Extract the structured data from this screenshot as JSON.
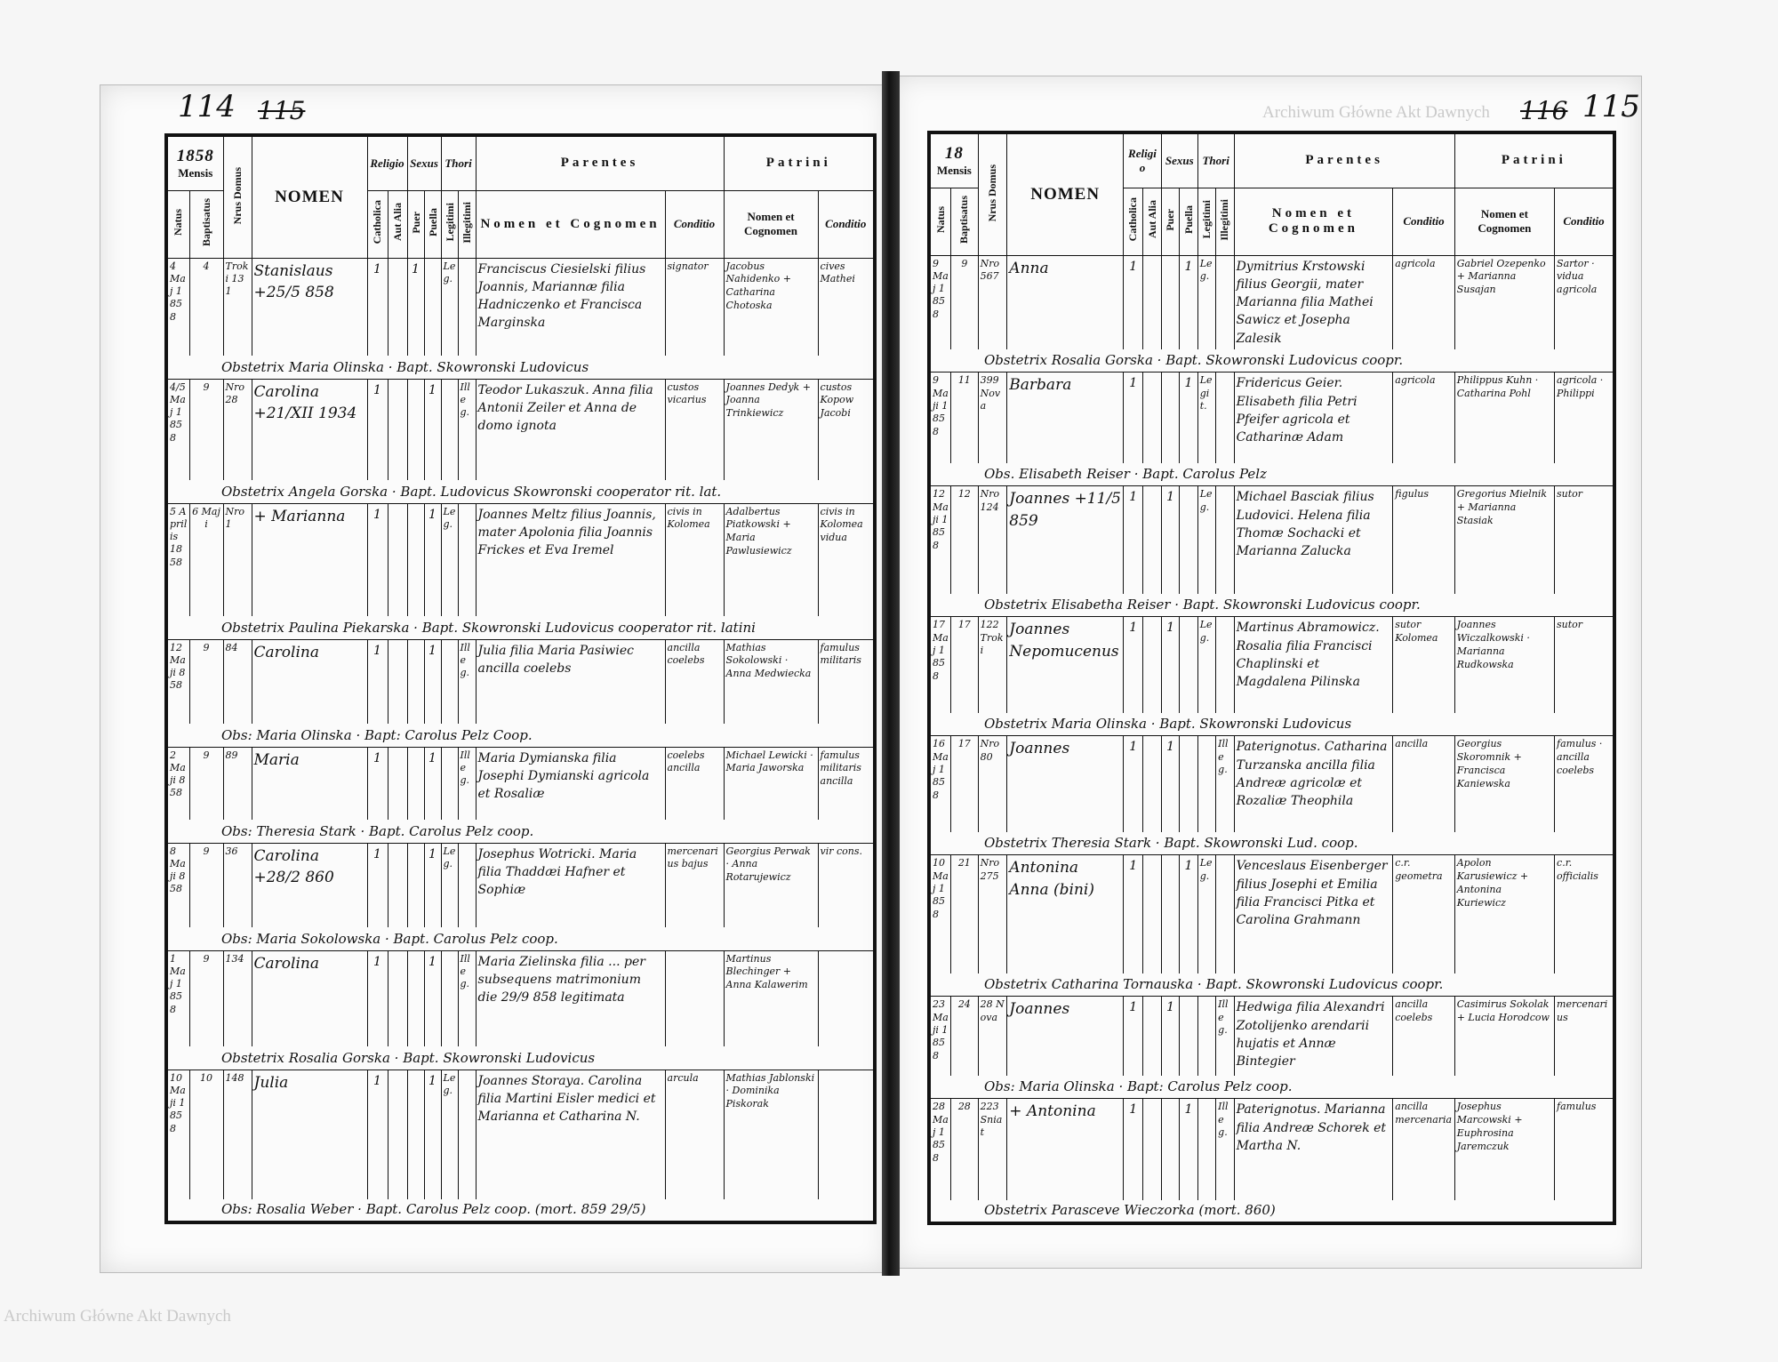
{
  "folios": {
    "left": "114",
    "left_struck": "115",
    "right_struck": "116",
    "right": "115"
  },
  "watermark": "Archiwum Główne Akt Dawnych",
  "headers": {
    "year_left": "1858",
    "year_right": "18",
    "mensis": "Mensis",
    "natus": "Natus",
    "baptisatus": "Baptisatus",
    "domus": "Nrus Domus",
    "nomen": "NOMEN",
    "religio": "Religio",
    "catholica": "Catholica",
    "aut_alia": "Aut Alia",
    "sexus": "Sexus",
    "puer": "Puer",
    "puella": "Puella",
    "legitimi": "Legitimi",
    "illegitimi": "Illegitimi",
    "thori": "Thori",
    "parentes": "Parentes",
    "patrini": "Patrini",
    "nomen_cognomen": "Nomen et Cognomen",
    "conditio": "Conditio"
  },
  "left_page": {
    "rows": [
      {
        "natus": "4 Maj 1858",
        "bapt": "4",
        "domus": "Troki 131",
        "nomen": "Stanislaus +25/5 858",
        "cath": "1",
        "alia": "",
        "puer": "1",
        "puella": "",
        "leg": "Leg.",
        "illeg": "",
        "parentes": "Franciscus Ciesielski filius Joannis, Mariannæ filia Hadniczenko et Francisca Marginska",
        "cond": "signator",
        "patrini": "Jacobus Nahidenko + Catharina Chotoska",
        "pcond": "cives Mathei",
        "note": "Obstetrix Maria Olinska · Bapt. Skowronski Ludovicus"
      },
      {
        "natus": "4/5 Maj 1858",
        "bapt": "9",
        "domus": "Nro 28",
        "nomen": "Carolina +21/XII 1934",
        "cath": "1",
        "alia": "",
        "puer": "",
        "puella": "1",
        "leg": "",
        "illeg": "Illeg.",
        "parentes": "Teodor Lukaszuk. Anna filia Antonii Zeiler et Anna de domo ignota",
        "cond": "custos vicarius",
        "patrini": "Joannes Dedyk + Joanna Trinkiewicz",
        "pcond": "custos Kopow Jacobi",
        "note": "Obstetrix Angela Gorska · Bapt. Ludovicus Skowronski cooperator rit. lat."
      },
      {
        "natus": "5 Aprilis 1858",
        "bapt": "6 Maji",
        "domus": "Nro 1",
        "nomen": "+ Marianna",
        "cath": "1",
        "alia": "",
        "puer": "",
        "puella": "1",
        "leg": "Leg.",
        "illeg": "",
        "parentes": "Joannes Meltz filius Joannis, mater Apolonia filia Joannis Frickes et Eva Iremel",
        "cond": "civis in Kolomea",
        "patrini": "Adalbertus Piatkowski + Maria Pawlusiewicz",
        "pcond": "civis in Kolomea vidua",
        "note": "Obstetrix Paulina Piekarska · Bapt. Skowronski Ludovicus cooperator rit. latini"
      },
      {
        "natus": "12 Maji 858",
        "bapt": "9",
        "domus": "84",
        "nomen": "Carolina",
        "cath": "1",
        "alia": "",
        "puer": "",
        "puella": "1",
        "leg": "",
        "illeg": "Illeg.",
        "parentes": "Julia filia Maria Pasiwiec ancilla coelebs",
        "cond": "ancilla coelebs",
        "patrini": "Mathias Sokolowski · Anna Medwiecka",
        "pcond": "famulus militaris",
        "note": "Obs: Maria Olinska · Bapt: Carolus Pelz Coop."
      },
      {
        "natus": "2 Maji 858",
        "bapt": "9",
        "domus": "89",
        "nomen": "Maria",
        "cath": "1",
        "alia": "",
        "puer": "",
        "puella": "1",
        "leg": "",
        "illeg": "Illeg.",
        "parentes": "Maria Dymianska filia Josephi Dymianski agricola et Rosaliæ",
        "cond": "coelebs ancilla",
        "patrini": "Michael Lewicki · Maria Jaworska",
        "pcond": "famulus militaris ancilla",
        "note": "Obs: Theresia Stark · Bapt. Carolus Pelz coop."
      },
      {
        "natus": "8 Maji 858",
        "bapt": "9",
        "domus": "36",
        "nomen": "Carolina +28/2 860",
        "cath": "1",
        "alia": "",
        "puer": "",
        "puella": "1",
        "leg": "Leg.",
        "illeg": "",
        "parentes": "Josephus Wotricki. Maria filia Thaddæi Hafner et Sophiæ",
        "cond": "mercenarius bajus",
        "patrini": "Georgius Perwak · Anna Rotarujewicz",
        "pcond": "vir cons.",
        "note": "Obs: Maria Sokolowska · Bapt. Carolus Pelz coop."
      },
      {
        "natus": "1 Maj 1858",
        "bapt": "9",
        "domus": "134",
        "nomen": "Carolina",
        "cath": "1",
        "alia": "",
        "puer": "",
        "puella": "1",
        "leg": "",
        "illeg": "Illeg.",
        "parentes": "Maria Zielinska filia ... per subsequens matrimonium die 29/9 858 legitimata",
        "cond": "",
        "patrini": "Martinus Blechinger + Anna Kalawerim",
        "pcond": "",
        "note": "Obstetrix Rosalia Gorska · Bapt. Skowronski Ludovicus"
      },
      {
        "natus": "10 Maji 1858",
        "bapt": "10",
        "domus": "148",
        "nomen": "Julia",
        "cath": "1",
        "alia": "",
        "puer": "",
        "puella": "1",
        "leg": "Leg.",
        "illeg": "",
        "parentes": "Joannes Storaya. Carolina filia Martini Eisler medici et Marianna et Catharina N.",
        "cond": "arcula",
        "patrini": "Mathias Jablonski · Dominika Piskorak",
        "pcond": "",
        "note": "Obs: Rosalia Weber · Bapt. Carolus Pelz coop. (mort. 859 29/5)"
      }
    ]
  },
  "right_page": {
    "rows": [
      {
        "natus": "9 Maj 1858",
        "bapt": "9",
        "domus": "Nro 567",
        "nomen": "Anna",
        "cath": "1",
        "alia": "",
        "puer": "",
        "puella": "1",
        "leg": "Leg.",
        "illeg": "",
        "parentes": "Dymitrius Krstowski filius Georgii, mater Marianna filia Mathei Sawicz et Josepha Zalesik",
        "cond": "agricola",
        "patrini": "Gabriel Ozepenko + Marianna Susajan",
        "pcond": "Sartor · vidua agricola",
        "note": "Obstetrix Rosalia Gorska · Bapt. Skowronski Ludovicus coopr."
      },
      {
        "natus": "9 Maji 1858",
        "bapt": "11",
        "domus": "399 Nova",
        "nomen": "Barbara",
        "cath": "1",
        "alia": "",
        "puer": "",
        "puella": "1",
        "leg": "Legit.",
        "illeg": "",
        "parentes": "Fridericus Geier. Elisabeth filia Petri Pfeifer agricola et Catharinæ Adam",
        "cond": "agricola",
        "patrini": "Philippus Kuhn · Catharina Pohl",
        "pcond": "agricola · Philippi",
        "note": "Obs. Elisabeth Reiser · Bapt. Carolus Pelz"
      },
      {
        "natus": "12 Maji 1858",
        "bapt": "12",
        "domus": "Nro 124",
        "nomen": "Joannes +11/5 859",
        "cath": "1",
        "alia": "",
        "puer": "1",
        "puella": "",
        "leg": "Leg.",
        "illeg": "",
        "parentes": "Michael Basciak filius Ludovici. Helena filia Thomæ Sochacki et Marianna Zalucka",
        "cond": "figulus",
        "patrini": "Gregorius Mielnik + Marianna Stasiak",
        "pcond": "sutor",
        "note": "Obstetrix Elisabetha Reiser · Bapt. Skowronski Ludovicus coopr."
      },
      {
        "natus": "17 Maj 1858",
        "bapt": "17",
        "domus": "122 Troki",
        "nomen": "Joannes Nepomucenus",
        "cath": "1",
        "alia": "",
        "puer": "1",
        "puella": "",
        "leg": "Leg.",
        "illeg": "",
        "parentes": "Martinus Abramowicz. Rosalia filia Francisci Chaplinski et Magdalena Pilinska",
        "cond": "sutor Kolomea",
        "patrini": "Joannes Wiczalkowski · Marianna Rudkowska",
        "pcond": "sutor",
        "note": "Obstetrix Maria Olinska · Bapt. Skowronski Ludovicus"
      },
      {
        "natus": "16 Maj 1858",
        "bapt": "17",
        "domus": "Nro 80",
        "nomen": "Joannes",
        "cath": "1",
        "alia": "",
        "puer": "1",
        "puella": "",
        "leg": "",
        "illeg": "Illeg.",
        "parentes": "Paterignotus. Catharina Turzanska ancilla filia Andreæ agricolæ et Rozaliæ Theophila",
        "cond": "ancilla",
        "patrini": "Georgius Skoromnik + Francisca Kaniewska",
        "pcond": "famulus · ancilla coelebs",
        "note": "Obstetrix Theresia Stark · Bapt. Skowronski Lud. coop."
      },
      {
        "natus": "10 Maj 1858",
        "bapt": "21",
        "domus": "Nro 275",
        "nomen": "Antonina Anna (bini)",
        "cath": "1",
        "alia": "",
        "puer": "",
        "puella": "1",
        "leg": "Leg.",
        "illeg": "",
        "parentes": "Venceslaus Eisenberger filius Josephi et Emilia filia Francisci Pitka et Carolina Grahmann",
        "cond": "c.r. geometra",
        "patrini": "Apolon Karusiewicz + Antonina Kuriewicz",
        "pcond": "c.r. officialis",
        "note": "Obstetrix Catharina Tornauska · Bapt. Skowronski Ludovicus coopr."
      },
      {
        "natus": "23 Maji 1858",
        "bapt": "24",
        "domus": "28 Nova",
        "nomen": "Joannes",
        "cath": "1",
        "alia": "",
        "puer": "1",
        "puella": "",
        "leg": "",
        "illeg": "Illeg.",
        "parentes": "Hedwiga filia Alexandri Zotolijenko arendarii hujatis et Annæ Bintegier",
        "cond": "ancilla coelebs",
        "patrini": "Casimirus Sokolak + Lucia Horodcow",
        "pcond": "mercenarius",
        "note": "Obs: Maria Olinska · Bapt: Carolus Pelz coop."
      },
      {
        "natus": "28 Maj 1858",
        "bapt": "28",
        "domus": "223 Sniat",
        "nomen": "+ Antonina",
        "cath": "1",
        "alia": "",
        "puer": "",
        "puella": "1",
        "leg": "",
        "illeg": "Illeg.",
        "parentes": "Paterignotus. Marianna filia Andreæ Schorek et Martha N.",
        "cond": "ancilla mercenaria",
        "patrini": "Josephus Marcowski + Euphrosina Jaremczuk",
        "pcond": "famulus",
        "note": "Obstetrix Parasceve Wieczorka (mort. 860)"
      }
    ]
  }
}
